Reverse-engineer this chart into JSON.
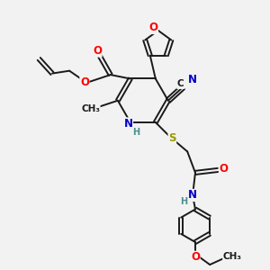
{
  "bg_color": "#f2f2f2",
  "bond_color": "#1a1a1a",
  "bond_width": 1.4,
  "dbo": 0.07,
  "atom_colors": {
    "O": "#ff0000",
    "N": "#0000cc",
    "S": "#999900",
    "C": "#1a1a1a",
    "H": "#4a9090"
  },
  "fs": 8.5
}
